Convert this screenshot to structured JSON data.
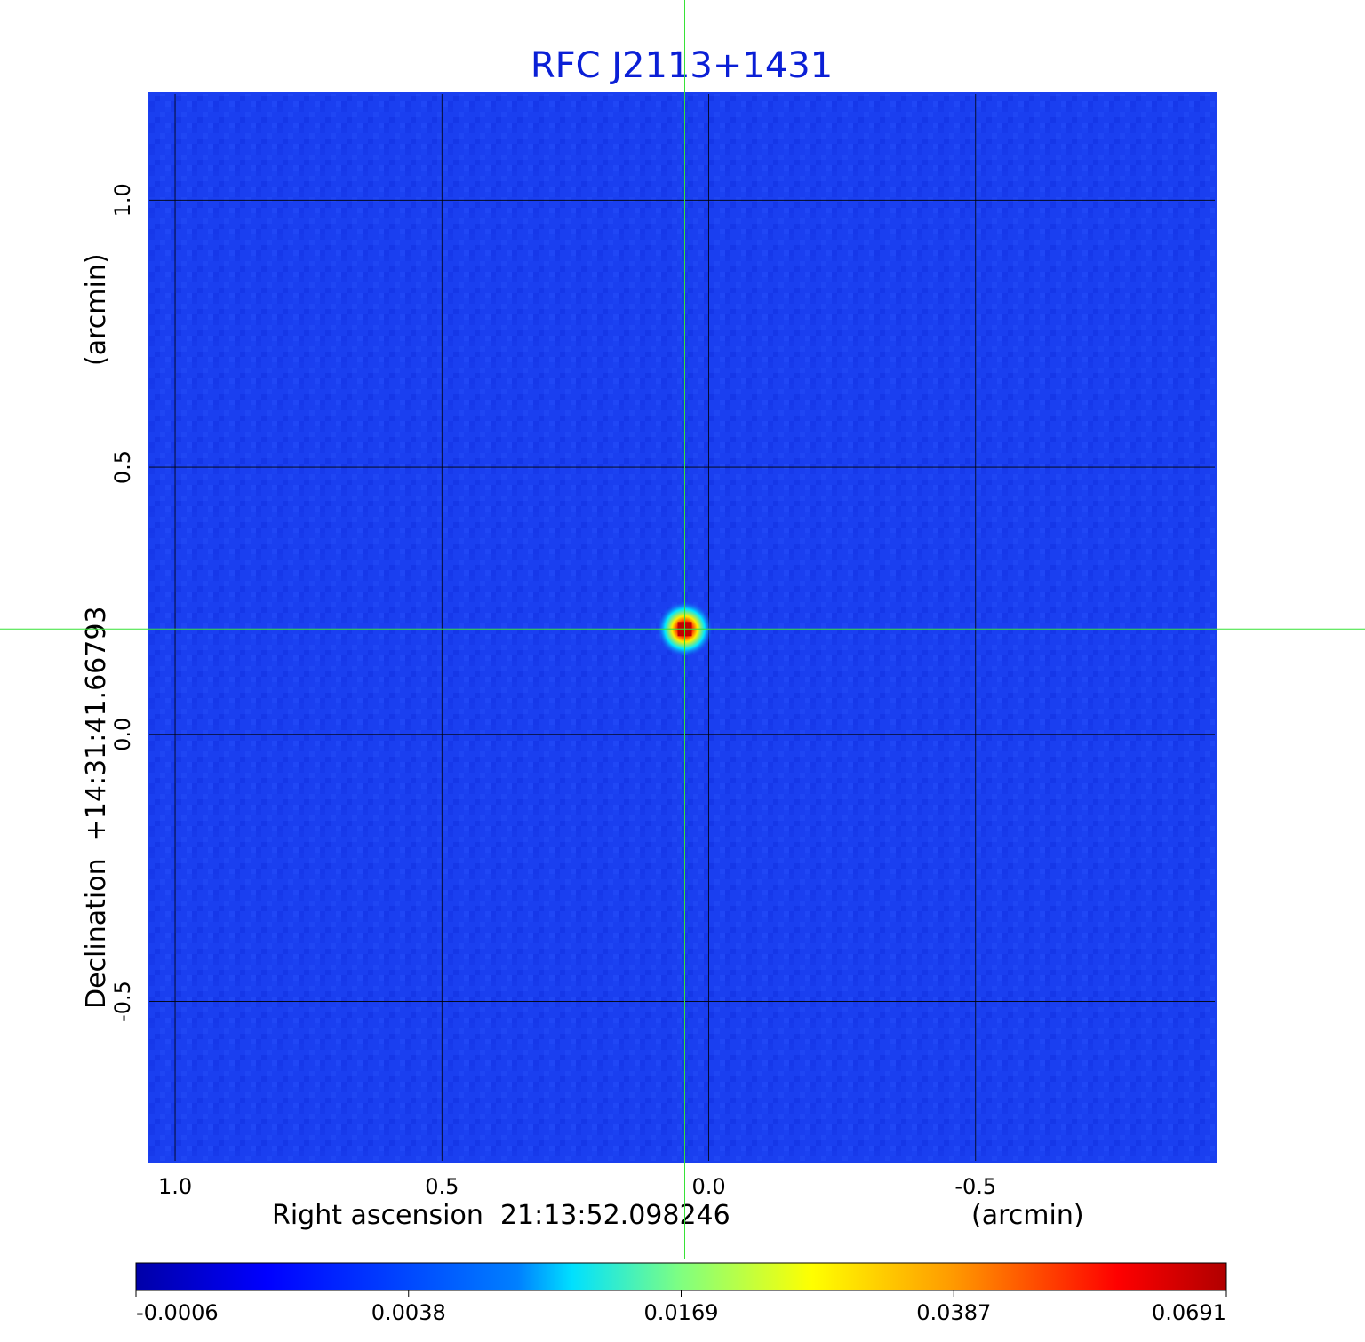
{
  "chart_data": {
    "type": "heatmap",
    "title": "RFC J2113+1431",
    "xaxis": {
      "label": "Right ascension  21:13:52.098246",
      "unit": "(arcmin)",
      "range": [
        1.05,
        -0.95
      ],
      "ticks": [
        1.0,
        0.5,
        0.0,
        -0.5
      ],
      "tick_labels": [
        "1.0",
        "0.5",
        "0.0",
        "-0.5"
      ],
      "inverted": true
    },
    "yaxis": {
      "label": "Declination  +14:31:41.66793",
      "unit": "(arcmin)",
      "range": [
        -0.8,
        1.2
      ],
      "ticks": [
        1.0,
        0.5,
        0.0,
        -0.5
      ],
      "tick_labels": [
        "1.0",
        "0.5",
        "0.0",
        "-0.5"
      ]
    },
    "grid": true,
    "source": {
      "x": 0.045,
      "y": 0.197,
      "peak": 0.0691
    },
    "crosshair": {
      "x": 0.045,
      "y": 0.197,
      "color": "#37e237"
    },
    "colorbar": {
      "orientation": "horizontal",
      "colormap": "jet",
      "tick_labels": [
        "-0.0006",
        "0.0038",
        "0.0169",
        "0.0387",
        "0.0691"
      ],
      "tick_values": [
        -0.0006,
        0.0038,
        0.0169,
        0.0387,
        0.0691
      ],
      "min": -0.0006,
      "max": 0.0691
    },
    "background_color": "#1a3ff0",
    "title_color": "#0a1fd6"
  }
}
